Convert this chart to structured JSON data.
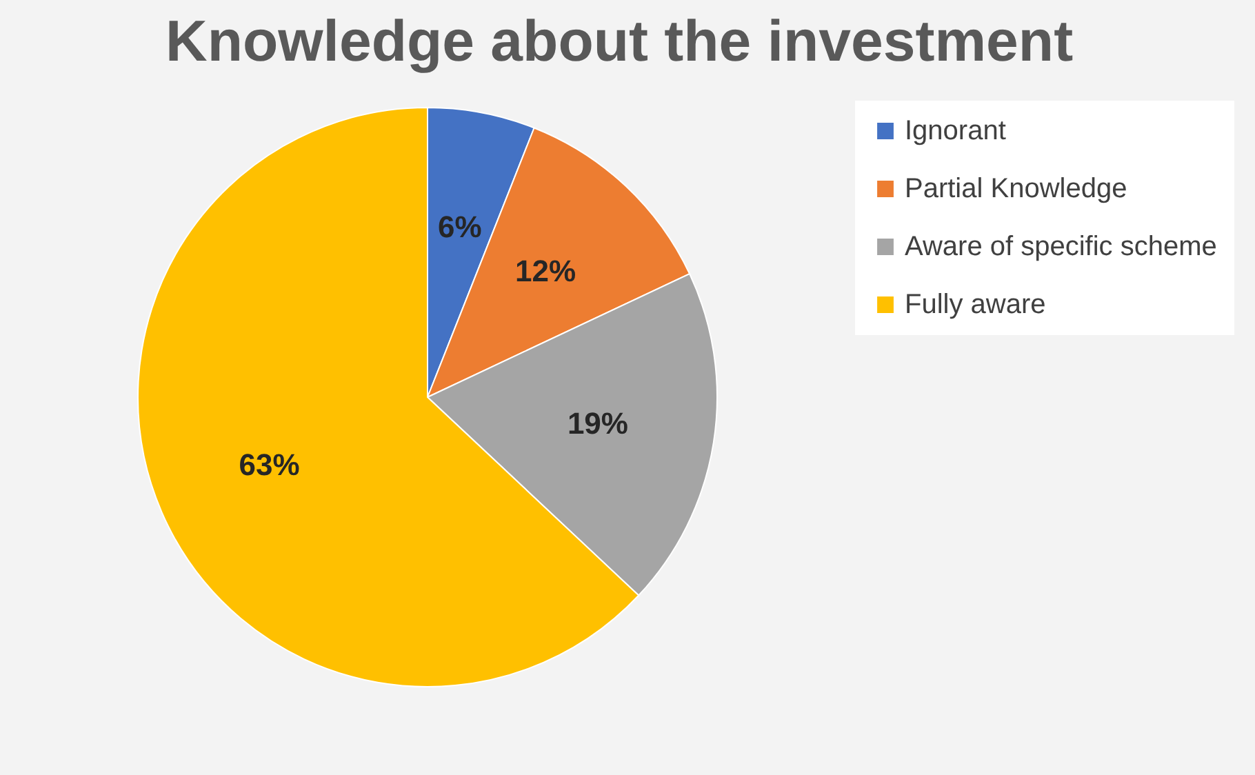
{
  "chart_data": {
    "type": "pie",
    "title": "Knowledge about the investment",
    "categories": [
      "Ignorant",
      "Partial Knowledge",
      "Aware of specific scheme",
      "Fully aware"
    ],
    "values": [
      6,
      12,
      19,
      63
    ],
    "colors": [
      "#4472c4",
      "#ed7d31",
      "#a5a5a5",
      "#ffc000"
    ],
    "value_labels": [
      "6%",
      "12%",
      "19%",
      "63%"
    ],
    "legend": "right"
  }
}
